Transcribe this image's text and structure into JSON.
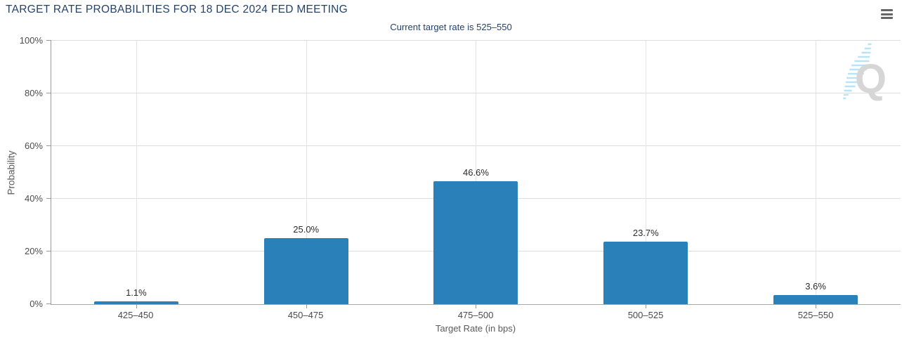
{
  "page": {
    "menu_icon": "hamburger-icon"
  },
  "chart_data": {
    "type": "bar",
    "title": "TARGET RATE PROBABILITIES FOR 18 DEC 2024 FED MEETING",
    "subtitle": "Current target rate is 525–550",
    "categories": [
      "425–450",
      "450–475",
      "475–500",
      "500–525",
      "525–550"
    ],
    "values": [
      1.1,
      25.0,
      46.6,
      23.7,
      3.6
    ],
    "value_labels": [
      "1.1%",
      "25.0%",
      "46.6%",
      "23.7%",
      "3.6%"
    ],
    "xlabel": "Target Rate (in bps)",
    "ylabel": "Probability",
    "ylim": [
      0,
      100
    ],
    "ytick_values": [
      0,
      20,
      40,
      60,
      80,
      100
    ],
    "ytick_labels": [
      "0%",
      "20%",
      "40%",
      "60%",
      "80%",
      "100%"
    ],
    "grid": true,
    "legend_position": "none",
    "watermark_letter": "Q",
    "colors": {
      "bar": "#2a80b9",
      "title": "#24426b",
      "grid": "#dddddd",
      "axis": "#999999",
      "tick_label": "#4d4d4d",
      "value_label": "#2b2b2b",
      "watermark_q": "#d6d6d6",
      "watermark_streak": "#b5e4f6",
      "menu_icon": "#666666"
    }
  }
}
